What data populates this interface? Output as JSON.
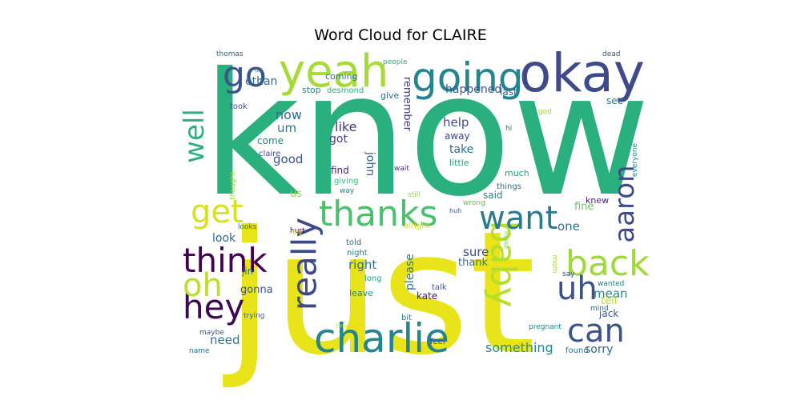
{
  "chart_data": {
    "type": "word_cloud",
    "title": "Word Cloud for CLAIRE",
    "colormap": "viridis",
    "background": "#ffffff",
    "words": [
      {
        "text": "know",
        "weight": 100,
        "color": "#2ab07f"
      },
      {
        "text": "just",
        "weight": 92,
        "color": "#e8e419"
      },
      {
        "text": "okay",
        "weight": 40,
        "color": "#3e4a89"
      },
      {
        "text": "going",
        "weight": 36,
        "color": "#25858e"
      },
      {
        "text": "yeah",
        "weight": 37,
        "color": "#a5db36"
      },
      {
        "text": "charlie",
        "weight": 33,
        "color": "#25848e"
      },
      {
        "text": "thanks",
        "weight": 31,
        "color": "#4ac16d"
      },
      {
        "text": "go",
        "weight": 29,
        "color": "#3b528b"
      },
      {
        "text": "baby",
        "weight": 30,
        "color": "#b5de2b"
      },
      {
        "text": "really",
        "weight": 30,
        "color": "#3e4989"
      },
      {
        "text": "think",
        "weight": 29,
        "color": "#440154"
      },
      {
        "text": "back",
        "weight": 29,
        "color": "#a0da39"
      },
      {
        "text": "hey",
        "weight": 29,
        "color": "#3e0751"
      },
      {
        "text": "want",
        "weight": 28,
        "color": "#287c8e"
      },
      {
        "text": "oh",
        "weight": 28,
        "color": "#bddf26"
      },
      {
        "text": "get",
        "weight": 27,
        "color": "#d8e219"
      },
      {
        "text": "can",
        "weight": 28,
        "color": "#3b528b"
      },
      {
        "text": "uh",
        "weight": 26,
        "color": "#3b528b"
      },
      {
        "text": "aaron",
        "weight": 25,
        "color": "#3e4a89"
      },
      {
        "text": "well",
        "weight": 24,
        "color": "#2ab07f"
      },
      {
        "text": "ethan",
        "weight": 10,
        "color": "#2c728e"
      },
      {
        "text": "now",
        "weight": 11,
        "color": "#2f6c8e"
      },
      {
        "text": "um",
        "weight": 10,
        "color": "#2a788e"
      },
      {
        "text": "like",
        "weight": 11,
        "color": "#453781"
      },
      {
        "text": "help",
        "weight": 10,
        "color": "#3e4a89"
      },
      {
        "text": "mean",
        "weight": 10,
        "color": "#23898e"
      },
      {
        "text": "something",
        "weight": 11,
        "color": "#228b8d"
      },
      {
        "text": "right",
        "weight": 9,
        "color": "#2e6e8e"
      },
      {
        "text": "good",
        "weight": 9,
        "color": "#3b528b"
      },
      {
        "text": "need",
        "weight": 9,
        "color": "#2c738e"
      },
      {
        "text": "happened",
        "weight": 9,
        "color": "#38588c"
      },
      {
        "text": "remember",
        "weight": 8,
        "color": "#433e85"
      },
      {
        "text": "please",
        "weight": 9,
        "color": "#2a788e"
      },
      {
        "text": "sure",
        "weight": 9,
        "color": "#3f4788"
      },
      {
        "text": "one",
        "weight": 9,
        "color": "#2c728e"
      },
      {
        "text": "sorry",
        "weight": 9,
        "color": "#31688e"
      },
      {
        "text": "john",
        "weight": 8,
        "color": "#33638d"
      },
      {
        "text": "look",
        "weight": 8,
        "color": "#31678e"
      },
      {
        "text": "got",
        "weight": 8,
        "color": "#433e85"
      },
      {
        "text": "take",
        "weight": 8,
        "color": "#2f6b8e"
      },
      {
        "text": "thank",
        "weight": 8,
        "color": "#2a768e"
      },
      {
        "text": "fine",
        "weight": 8,
        "color": "#5ec962"
      },
      {
        "text": "tell",
        "weight": 8,
        "color": "#b8de29"
      },
      {
        "text": "jack",
        "weight": 7,
        "color": "#39568c"
      },
      {
        "text": "kate",
        "weight": 7,
        "color": "#481769"
      },
      {
        "text": "gonna",
        "weight": 7,
        "color": "#3b528b"
      },
      {
        "text": "come",
        "weight": 7,
        "color": "#24868e"
      },
      {
        "text": "away",
        "weight": 7,
        "color": "#3f4788"
      },
      {
        "text": "said",
        "weight": 7,
        "color": "#25838e"
      },
      {
        "text": "see",
        "weight": 7,
        "color": "#2a778e"
      },
      {
        "text": "last",
        "weight": 6,
        "color": "#33628d"
      },
      {
        "text": "find",
        "weight": 6,
        "color": "#482475"
      },
      {
        "text": "us",
        "weight": 6,
        "color": "#9bd93c"
      },
      {
        "text": "jin",
        "weight": 6,
        "color": "#2d708e"
      },
      {
        "text": "leave",
        "weight": 6,
        "color": "#228c8d"
      },
      {
        "text": "little",
        "weight": 6,
        "color": "#20a386"
      },
      {
        "text": "much",
        "weight": 6,
        "color": "#20a486"
      },
      {
        "text": "things",
        "weight": 6,
        "color": "#2f6b8e"
      },
      {
        "text": "knew",
        "weight": 6,
        "color": "#482173"
      },
      {
        "text": "stop",
        "weight": 6,
        "color": "#23888e"
      },
      {
        "text": "give",
        "weight": 6,
        "color": "#2c718e"
      },
      {
        "text": "coming",
        "weight": 5,
        "color": "#2d708e"
      },
      {
        "text": "desmond",
        "weight": 5,
        "color": "#29af7f"
      },
      {
        "text": "took",
        "weight": 5,
        "color": "#3b528b"
      },
      {
        "text": "claire",
        "weight": 5,
        "color": "#3e4c8a"
      },
      {
        "text": "giving",
        "weight": 5,
        "color": "#35b779"
      },
      {
        "text": "way",
        "weight": 5,
        "color": "#287d8e"
      },
      {
        "text": "told",
        "weight": 5,
        "color": "#2f6c8e"
      },
      {
        "text": "night",
        "weight": 5,
        "color": "#287c8e"
      },
      {
        "text": "long",
        "weight": 5,
        "color": "#1fa088"
      },
      {
        "text": "talk",
        "weight": 5,
        "color": "#38588c"
      },
      {
        "text": "bit",
        "weight": 5,
        "color": "#2a768e"
      },
      {
        "text": "feel",
        "weight": 5,
        "color": "#3f4788"
      },
      {
        "text": "found",
        "weight": 5,
        "color": "#2a778e"
      },
      {
        "text": "wanted",
        "weight": 5,
        "color": "#2d708e"
      },
      {
        "text": "mind",
        "weight": 5,
        "color": "#31688e"
      },
      {
        "text": "say",
        "weight": 5,
        "color": "#3e4989"
      },
      {
        "text": "wait",
        "weight": 5,
        "color": "#472d7b"
      },
      {
        "text": "still",
        "weight": 5,
        "color": "#a2da37"
      },
      {
        "text": "huh",
        "weight": 5,
        "color": "#3b528b"
      },
      {
        "text": "wrong",
        "weight": 5,
        "color": "#5cc863"
      },
      {
        "text": "hurt",
        "weight": 5,
        "color": "#440154"
      },
      {
        "text": "try",
        "weight": 5,
        "color": "#d2e21b"
      },
      {
        "text": "alright",
        "weight": 5,
        "color": "#d0e11c"
      },
      {
        "text": "looks",
        "weight": 5,
        "color": "#2e6f8e"
      },
      {
        "text": "trying",
        "weight": 5,
        "color": "#33638d"
      },
      {
        "text": "maybe",
        "weight": 4,
        "color": "#3b528b"
      },
      {
        "text": "name",
        "weight": 4,
        "color": "#2f6b8e"
      },
      {
        "text": "time",
        "weight": 4,
        "color": "#e5e419"
      },
      {
        "text": "pregnant",
        "weight": 4,
        "color": "#26828e"
      },
      {
        "text": "mom",
        "weight": 4,
        "color": "#a5db36"
      },
      {
        "text": "make",
        "weight": 4,
        "color": "#7ad151"
      },
      {
        "text": "thought",
        "weight": 4,
        "color": "#95d840"
      },
      {
        "text": "thomas",
        "weight": 4,
        "color": "#33638d"
      },
      {
        "text": "ok",
        "weight": 4,
        "color": "#31688e"
      },
      {
        "text": "people",
        "weight": 4,
        "color": "#29af7f"
      },
      {
        "text": "dead",
        "weight": 4,
        "color": "#3b528b"
      },
      {
        "text": "god",
        "weight": 4,
        "color": "#a8db34"
      },
      {
        "text": "hi",
        "weight": 4,
        "color": "#2a778e"
      },
      {
        "text": "everyone",
        "weight": 4,
        "color": "#25848e"
      }
    ]
  }
}
